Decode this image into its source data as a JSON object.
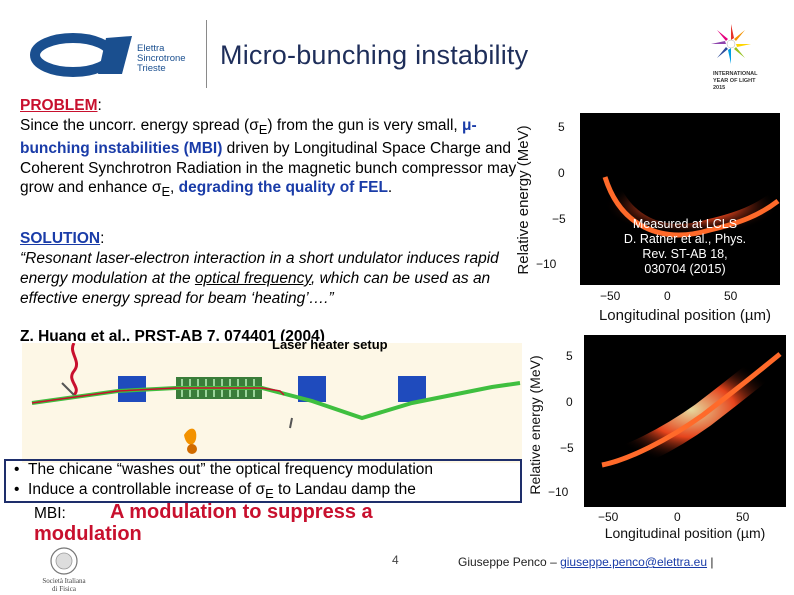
{
  "header": {
    "logo_lines": [
      "Elettra",
      "Sincrotrone",
      "Trieste"
    ],
    "title": "Micro-bunching instability",
    "iyl_lines": [
      "INTERNATIONAL",
      "YEAR OF LIGHT",
      "2015"
    ]
  },
  "problem": {
    "label": "PROBLEM",
    "t1": "Since the uncorr. energy spread (",
    "sigma": "σ",
    "sub_e": "E",
    "t2": ") from the gun is very small, ",
    "mu": "μ",
    "mbi": "-bunching instabilities (MBI)",
    "t3": " driven by Longitudinal Space Charge and Coherent Synchrotron Radiation in the magnetic bunch compressor may grow and enhance ",
    "t4": ", ",
    "degrading": "degrading the quality of FEL",
    "t5": "."
  },
  "solution": {
    "label": "SOLUTION",
    "t1": "“Resonant laser-electron interaction in a short undulator induces rapid energy modulation at the ",
    "optical": "optical frequency",
    "t2": ", which can be used as an effective energy spread for beam ‘heating’….”",
    "ref": "Z. Huang et al., PRST-AB 7, 074401 (2004)"
  },
  "diagram": {
    "title": "Laser heater setup"
  },
  "bullets": {
    "b1": "The chicane “washes out” the optical frequency modulation",
    "b2a": "Induce a controllable increase of ",
    "b2b": " to Landau damp the",
    "mbi": "MBI:",
    "modulation": "A modulation to suppress a modulation"
  },
  "plot1": {
    "ylabel": "Relative energy (MeV)",
    "xlabel": "Longitudinal position (µm)",
    "yticks": [
      "5",
      "0",
      "−5",
      "−10"
    ],
    "xticks": [
      "−50",
      "0",
      "50"
    ],
    "note": [
      "Measured at LCLS",
      "D. Ratner et al., Phys.",
      "Rev. ST-AB 18,",
      "030704 (2015)"
    ]
  },
  "plot2": {
    "ylabel": "Relative energy (MeV)",
    "xlabel": "Longitudinal position (µm)",
    "yticks": [
      "5",
      "0",
      "−5",
      "−10"
    ],
    "xticks": [
      "−50",
      "0",
      "50"
    ]
  },
  "footer": {
    "page": "4",
    "author": "Giuseppe Penco – ",
    "email": "giuseppe.penco@elettra.eu",
    "sep": " |",
    "seal_lines": [
      "Società Italiana",
      "di Fisica"
    ]
  },
  "colors": {
    "title": "#1e2e5a",
    "red": "#c8102e",
    "blue": "#1a3ca8",
    "accent_box": "#1e2e6b"
  }
}
